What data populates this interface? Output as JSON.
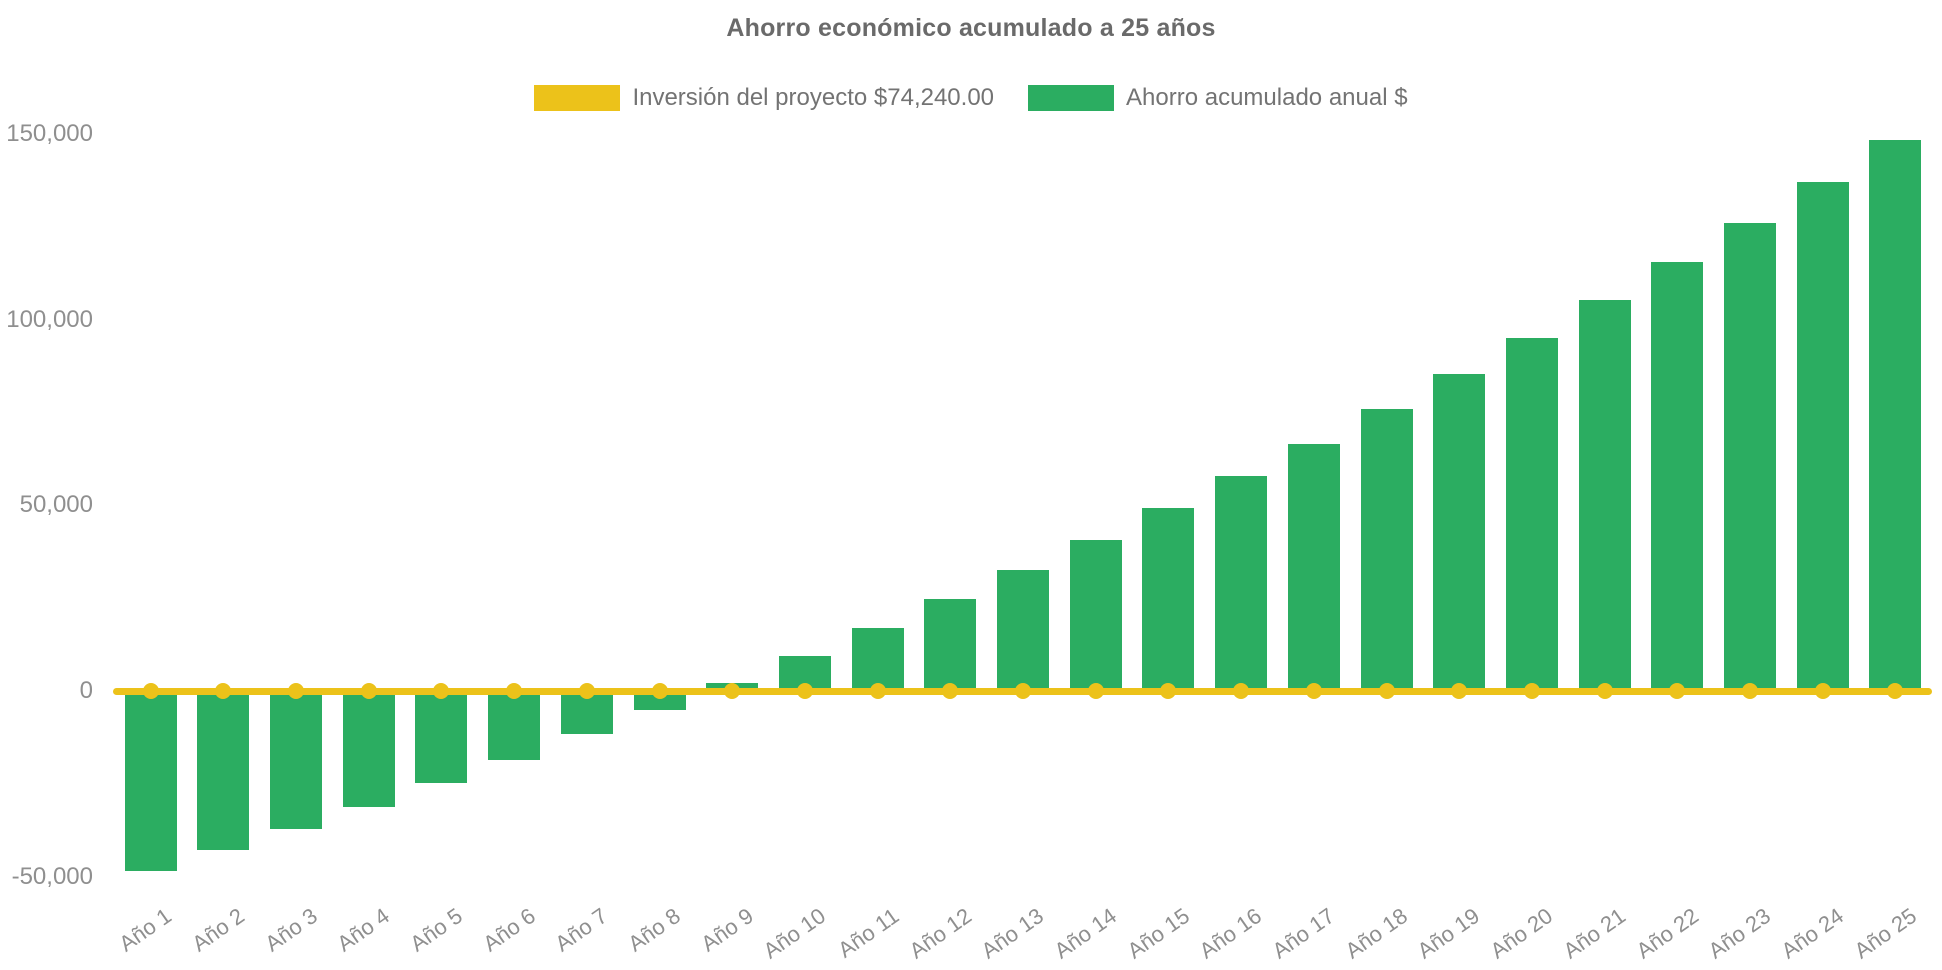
{
  "chart_data": {
    "type": "bar",
    "title": "Ahorro económico acumulado a 25 años",
    "categories": [
      "Año 1",
      "Año 2",
      "Año 3",
      "Año 4",
      "Año 5",
      "Año 6",
      "Año 7",
      "Año 8",
      "Año 9",
      "Año 10",
      "Año 11",
      "Año 12",
      "Año 13",
      "Año 14",
      "Año 15",
      "Año 16",
      "Año 17",
      "Año 18",
      "Año 19",
      "Año 20",
      "Año 21",
      "Año 22",
      "Año 23",
      "Año 24",
      "Año 25"
    ],
    "series": [
      {
        "name": "Inversión del proyecto $74,240.00",
        "type": "line",
        "color": "#ECC21A",
        "values": [
          0,
          0,
          0,
          0,
          0,
          0,
          0,
          0,
          0,
          0,
          0,
          0,
          0,
          0,
          0,
          0,
          0,
          0,
          0,
          0,
          0,
          0,
          0,
          0,
          0
        ]
      },
      {
        "name": "Ahorro acumulado anual $",
        "type": "bar",
        "color": "#2BAD61",
        "values": [
          -48500,
          -42900,
          -37100,
          -31100,
          -24900,
          -18500,
          -11700,
          -5000,
          2100,
          9500,
          16900,
          24700,
          32500,
          40600,
          49200,
          58000,
          66600,
          75900,
          85400,
          95000,
          105200,
          115400,
          126100,
          137100,
          148300
        ]
      }
    ],
    "yticks": [
      {
        "label": "150,000",
        "value": 150000
      },
      {
        "label": "100,000",
        "value": 100000
      },
      {
        "label": "50,000",
        "value": 50000
      },
      {
        "label": "0",
        "value": 0
      },
      {
        "label": "-50,000",
        "value": -50000
      }
    ],
    "ylim": [
      -50000,
      150000
    ],
    "xlabel": "",
    "ylabel": "",
    "grid": false,
    "legend_position": "top-center",
    "colors": {
      "bar": "#2BAD61",
      "line": "#ECC21A",
      "title_text": "#6A6A6A",
      "axis_text": "#8F8F8F",
      "legend_text": "#737373",
      "background": "#FFFFFF"
    }
  }
}
